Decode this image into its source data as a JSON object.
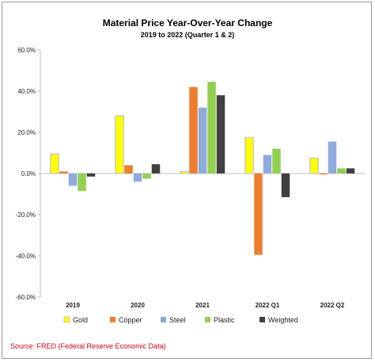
{
  "chart_data": {
    "type": "bar",
    "title": "Material Price Year-Over-Year Change",
    "subtitle": "2019 to 2022 (Quarter 1 & 2)",
    "categories": [
      "2019",
      "2020",
      "2021",
      "2022 Q1",
      "2022 Q2"
    ],
    "series": [
      {
        "name": "Gold",
        "color": "#ffff00",
        "values": [
          9.5,
          28.0,
          1.0,
          17.5,
          7.5
        ]
      },
      {
        "name": "Copper",
        "color": "#ed7d31",
        "values": [
          1.0,
          4.0,
          42.0,
          -39.5,
          -0.5
        ]
      },
      {
        "name": "Steel",
        "color": "#8faadc",
        "values": [
          -6.0,
          -4.0,
          32.0,
          9.0,
          15.5
        ]
      },
      {
        "name": "Plastic",
        "color": "#92d050",
        "values": [
          -8.5,
          -2.5,
          44.5,
          12.0,
          2.5
        ]
      },
      {
        "name": "Weighted",
        "color": "#404040",
        "values": [
          -1.5,
          4.5,
          38.0,
          -11.5,
          2.5
        ]
      }
    ],
    "ylim": [
      -60,
      60
    ],
    "ytick_step": 20,
    "yticks": [
      "60.0%",
      "40.0%",
      "20.0%",
      "0.0%",
      "-20.0%",
      "-40.0%",
      "-60.0%"
    ],
    "grid": false,
    "legend_position": "bottom",
    "gold_outline_color": "#c9c9c9",
    "source": "Source: FRED (Federal Reserve Economic Data)"
  }
}
